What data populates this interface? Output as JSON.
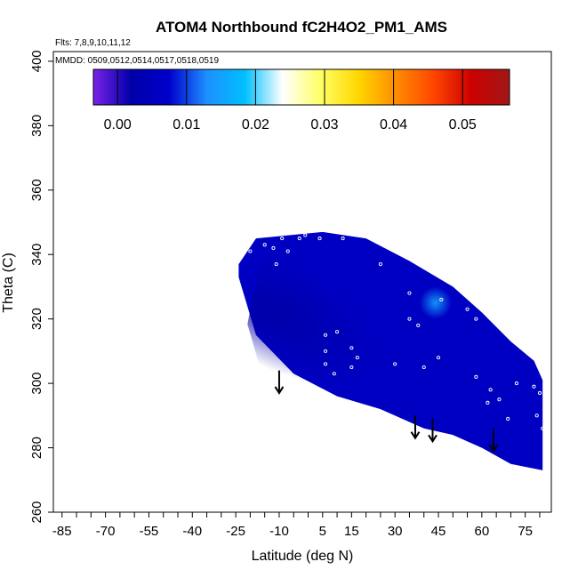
{
  "chart_data": {
    "type": "heatmap",
    "title": "ATOM4 Northbound fC2H4O2_PM1_AMS",
    "flights_note": "Flts: 7,8,9,10,11,12",
    "dates_note": "MMDD: 0509,0512,0514,0517,0518,0519",
    "xlabel": "Latitude (deg N)",
    "ylabel": "Theta (C)",
    "xlim": [
      -88,
      84
    ],
    "ylim": [
      260,
      403
    ],
    "x_ticks": [
      -85,
      -70,
      -55,
      -40,
      -25,
      -10,
      5,
      15,
      30,
      45,
      60,
      75
    ],
    "y_ticks": [
      260,
      280,
      300,
      320,
      340,
      360,
      380,
      400
    ],
    "colorbar": {
      "range": [
        -0.0035,
        0.0568
      ],
      "ticks": [
        0.0,
        0.01,
        0.02,
        0.03,
        0.04,
        0.05
      ],
      "tick_labels": [
        "0.00",
        "0.01",
        "0.02",
        "0.03",
        "0.04",
        "0.05"
      ],
      "colors": [
        "#7a22e8",
        "#0000a8",
        "#0000cc",
        "#1e90ff",
        "#00bfff",
        "#ffffff",
        "#ffff66",
        "#ffd700",
        "#ff8c00",
        "#ff4500",
        "#cc0000",
        "#a01818"
      ]
    },
    "field_boundary_top": [
      [
        -24,
        337
      ],
      [
        -18,
        345
      ],
      [
        5,
        347
      ],
      [
        20,
        345
      ],
      [
        35,
        338
      ],
      [
        50,
        330
      ],
      [
        60,
        322
      ],
      [
        70,
        313
      ],
      [
        78,
        307
      ],
      [
        81,
        301
      ]
    ],
    "field_boundary_bottom": [
      [
        81,
        273
      ],
      [
        70,
        275
      ],
      [
        60,
        280
      ],
      [
        50,
        284
      ],
      [
        40,
        286
      ],
      [
        25,
        292
      ],
      [
        10,
        296
      ],
      [
        -5,
        303
      ],
      [
        -18,
        315
      ],
      [
        -24,
        333
      ]
    ],
    "field_base_value": 0.006,
    "field_low_region": {
      "center": [
        -12,
        322
      ],
      "value": 0.002
    },
    "field_high_spot": {
      "center": [
        44,
        325
      ],
      "value": 0.015
    },
    "observation_points": [
      [
        -20,
        341
      ],
      [
        -15,
        343
      ],
      [
        -12,
        342
      ],
      [
        -9,
        345
      ],
      [
        -3,
        345
      ],
      [
        -1,
        346
      ],
      [
        4,
        345
      ],
      [
        12,
        345
      ],
      [
        -7,
        341
      ],
      [
        -11,
        337
      ],
      [
        25,
        337
      ],
      [
        35,
        328
      ],
      [
        35,
        320
      ],
      [
        38,
        318
      ],
      [
        46,
        326
      ],
      [
        55,
        323
      ],
      [
        58,
        320
      ],
      [
        6,
        315
      ],
      [
        6,
        310
      ],
      [
        10,
        316
      ],
      [
        15,
        311
      ],
      [
        17,
        308
      ],
      [
        15,
        305
      ],
      [
        6,
        306
      ],
      [
        9,
        303
      ],
      [
        30,
        306
      ],
      [
        40,
        305
      ],
      [
        45,
        308
      ],
      [
        58,
        302
      ],
      [
        63,
        298
      ],
      [
        66,
        295
      ],
      [
        62,
        294
      ],
      [
        69,
        289
      ],
      [
        72,
        300
      ],
      [
        78,
        299
      ],
      [
        80,
        297
      ],
      [
        79,
        290
      ],
      [
        81,
        286
      ]
    ],
    "arrows": [
      {
        "x": -10,
        "y_top": 304,
        "y_bottom": 297
      },
      {
        "x": 37,
        "y_top": 290,
        "y_bottom": 283
      },
      {
        "x": 43,
        "y_top": 289,
        "y_bottom": 282
      },
      {
        "x": 64,
        "y_top": 286,
        "y_bottom": 279
      }
    ]
  }
}
